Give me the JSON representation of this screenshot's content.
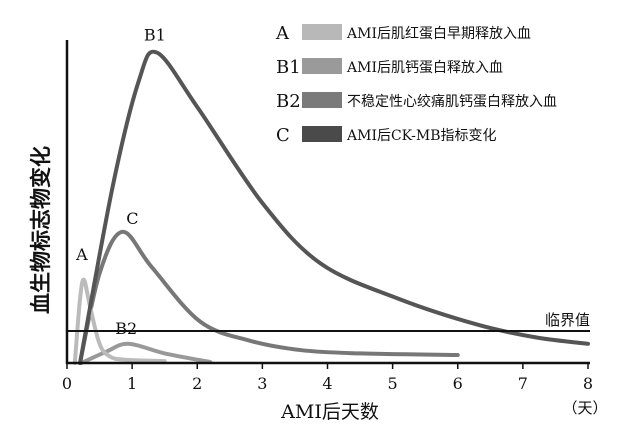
{
  "chart_data": {
    "type": "line",
    "xlabel": "AMI后天数",
    "x_unit": "（天）",
    "ylabel": "血生物标志物变化",
    "xlim": [
      0,
      8
    ],
    "ylim": [
      0,
      100
    ],
    "x_ticks": [
      "0",
      "1",
      "2",
      "3",
      "4",
      "5",
      "6",
      "7",
      "8"
    ],
    "y_ticks": [],
    "grid": false,
    "legend_position": "top-right",
    "threshold": {
      "label": "临界值",
      "value": 10,
      "color": "#111111"
    },
    "series": [
      {
        "name": "A",
        "legend_label": "AMI后肌红蛋白早期释放入血",
        "color": "#bbbbbb",
        "swatch": "#b8b8b8",
        "x": [
          0.12,
          0.2,
          0.26,
          0.35,
          0.5,
          0.66,
          0.9,
          1.5
        ],
        "y": [
          0,
          20,
          26,
          18,
          6,
          2,
          1,
          0.6
        ]
      },
      {
        "name": "B1",
        "legend_label": "AMI后肌钙蛋白释放入血",
        "color": "#555555",
        "swatch": "#9a9a9a",
        "x": [
          0.2,
          0.7,
          1.1,
          1.38,
          2.0,
          3.0,
          3.9,
          5.1,
          6.3,
          7.2,
          8.0
        ],
        "y": [
          0,
          55,
          88,
          97,
          80,
          50,
          31,
          20,
          12,
          8,
          6
        ]
      },
      {
        "name": "B2",
        "legend_label": "不稳定性心绞痛肌钙蛋白释放入血",
        "color": "#999999",
        "swatch": "#7a7a7a",
        "x": [
          0.22,
          0.6,
          0.94,
          1.5,
          2.2
        ],
        "y": [
          0,
          3.5,
          6,
          3,
          0.3
        ]
      },
      {
        "name": "C",
        "legend_label": "AMI后CK-MB指标变化",
        "color": "#777777",
        "swatch": "#4a4a4a",
        "x": [
          0.2,
          0.5,
          0.85,
          1.3,
          2.04,
          2.8,
          3.6,
          4.5,
          6.0
        ],
        "y": [
          0,
          28,
          41,
          30,
          13,
          7,
          4,
          3,
          2.5
        ]
      }
    ]
  }
}
